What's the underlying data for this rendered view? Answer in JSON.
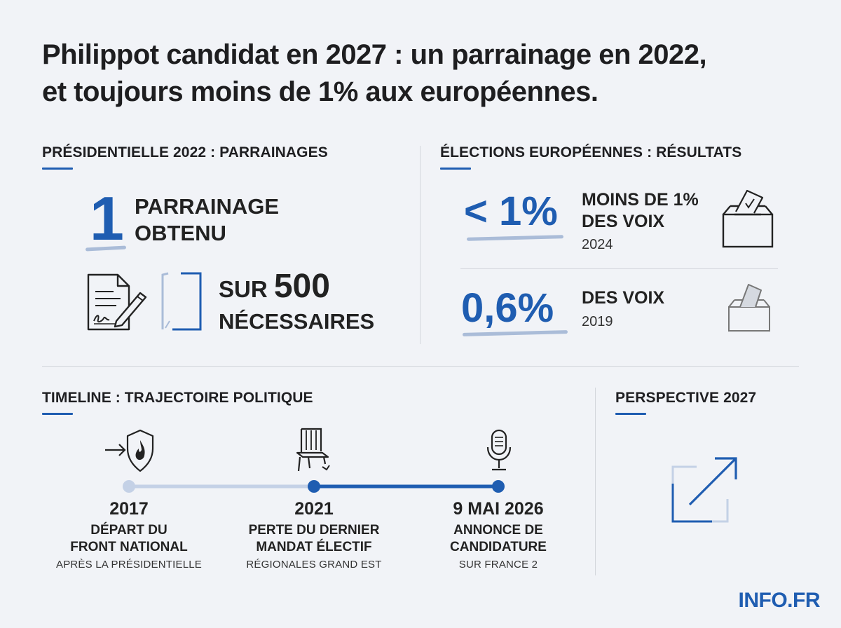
{
  "headline": {
    "line1": "Philippot candidat en 2027 : un parrainage en 2022,",
    "line2": "et toujours moins de 1% aux européennes."
  },
  "presidentielle": {
    "section_title": "PRÉSIDENTIELLE 2022 : PARRAINAGES",
    "count": "1",
    "count_label_line1": "PARRAINAGE",
    "count_label_line2": "OBTENU",
    "required_prefix": "SUR",
    "required_number": "500",
    "required_suffix": "NÉCESSAIRES",
    "progress_fraction": 0.002
  },
  "europeennes": {
    "section_title": "ÉLECTIONS EUROPÉENNES : RÉSULTATS",
    "results": [
      {
        "value": "< 1%",
        "label_line1": "MOINS DE 1%",
        "label_line2": "DES VOIX",
        "year": "2024",
        "icon": "ballot-box-icon"
      },
      {
        "value": "0,6%",
        "label_line1": "DES VOIX",
        "year": "2019",
        "icon": "ballot-box-icon"
      }
    ]
  },
  "timeline": {
    "section_title": "TIMELINE : TRAJECTOIRE POLITIQUE",
    "events": [
      {
        "year": "2017",
        "label_line1": "DÉPART DU",
        "label_line2": "FRONT NATIONAL",
        "sub": "APRÈS LA PRÉSIDENTIELLE",
        "icon": "exit-shield-flame-icon"
      },
      {
        "year": "2021",
        "label_line1": "PERTE DU DERNIER",
        "label_line2": "MANDAT ÉLECTIF",
        "sub": "RÉGIONALES GRAND EST",
        "icon": "broken-chair-icon"
      },
      {
        "year": "9 MAI 2026",
        "label_line1": "ANNONCE DE",
        "label_line2": "CANDIDATURE",
        "sub": "SUR FRANCE 2",
        "icon": "microphone-icon"
      }
    ]
  },
  "perspective": {
    "section_title": "PERSPECTIVE 2027",
    "icon": "arrow-up-right-icon"
  },
  "brand": "INFO.FR",
  "colors": {
    "accent": "#1f5db1",
    "light_accent": "#aabcd8",
    "background": "#f1f3f7"
  }
}
